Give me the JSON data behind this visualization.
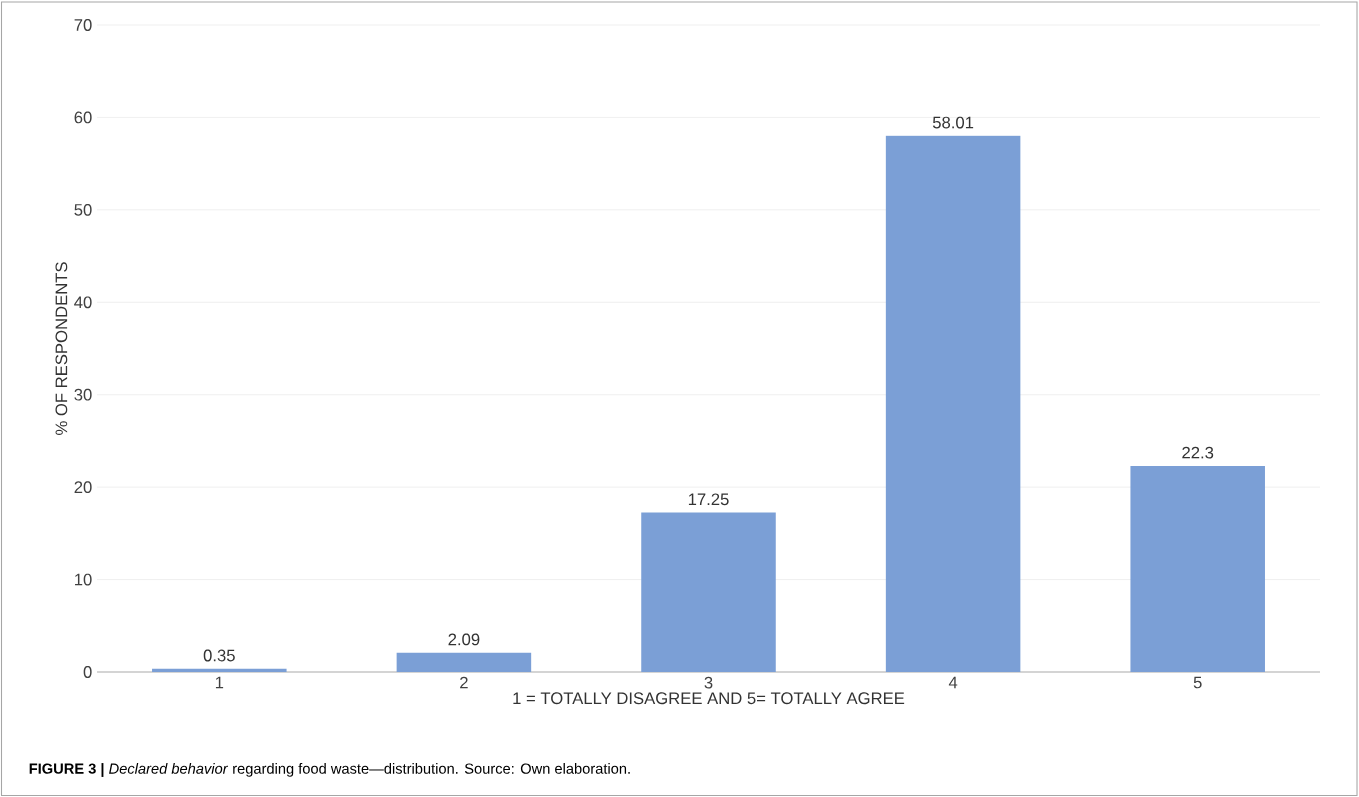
{
  "chart_data": {
    "type": "bar",
    "ylabel": "% OF RESPONDENTS",
    "xlabel": "1 = TOTALLY DISAGREE AND 5= TOTALLY AGREE",
    "categories": [
      "1",
      "2",
      "3",
      "4",
      "5"
    ],
    "values": [
      0.35,
      2.09,
      17.25,
      58.01,
      22.3
    ],
    "color": "#7b9fd6",
    "ylim": [
      0,
      70
    ],
    "yticks": [
      0,
      10,
      20,
      30,
      40,
      50,
      60,
      70
    ],
    "grid": "y",
    "data_labels": true,
    "annotations": [
      "**FIGURE 3 |** *Declared behavior* regarding food waste—distribution. Source: Own elaboration."
    ]
  }
}
